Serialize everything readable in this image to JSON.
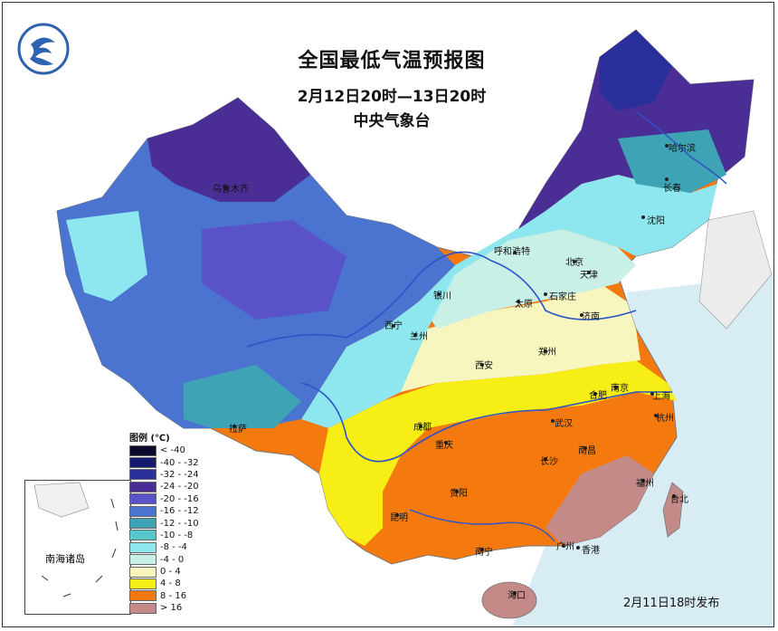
{
  "title": "全国最低气温预报图",
  "period": "2月12日20时—13日20时",
  "agency": "中央气象台",
  "issued": "2月11日18时发布",
  "legend": {
    "title": "图例 (℃)",
    "items": [
      {
        "label": "< -40",
        "color": "#0a0a2a"
      },
      {
        "label": "-40 - -32",
        "color": "#151a6e"
      },
      {
        "label": "-32 - -24",
        "color": "#2a2f9c"
      },
      {
        "label": "-24 - -20",
        "color": "#4b2d96"
      },
      {
        "label": "-20 - -16",
        "color": "#5a52c8"
      },
      {
        "label": "-16 - -12",
        "color": "#4a74d0"
      },
      {
        "label": "-12 - -10",
        "color": "#3ea3b4"
      },
      {
        "label": "-10 - -8",
        "color": "#56c8cc"
      },
      {
        "label": "-8 - -4",
        "color": "#8ee6ee"
      },
      {
        "label": "-4 - 0",
        "color": "#c8f0e6"
      },
      {
        "label": "0 - 4",
        "color": "#f6f6be"
      },
      {
        "label": "4 - 8",
        "color": "#f6ee14"
      },
      {
        "label": "8 - 16",
        "color": "#f47a10"
      },
      {
        "label": "> 16",
        "color": "#c48a88"
      }
    ]
  },
  "inset_label": "南海诸岛",
  "cities": [
    "乌鲁木齐",
    "哈尔滨",
    "长春",
    "沈阳",
    "呼和浩特",
    "北京",
    "天津",
    "石家庄",
    "银川",
    "太原",
    "济南",
    "西宁",
    "兰州",
    "郑州",
    "西安",
    "合肥",
    "南京",
    "上海",
    "拉萨",
    "成都",
    "武汉",
    "杭州",
    "重庆",
    "南昌",
    "长沙",
    "贵阳",
    "福州",
    "台北",
    "昆明",
    "南宁",
    "广州",
    "香港",
    "海口"
  ]
}
